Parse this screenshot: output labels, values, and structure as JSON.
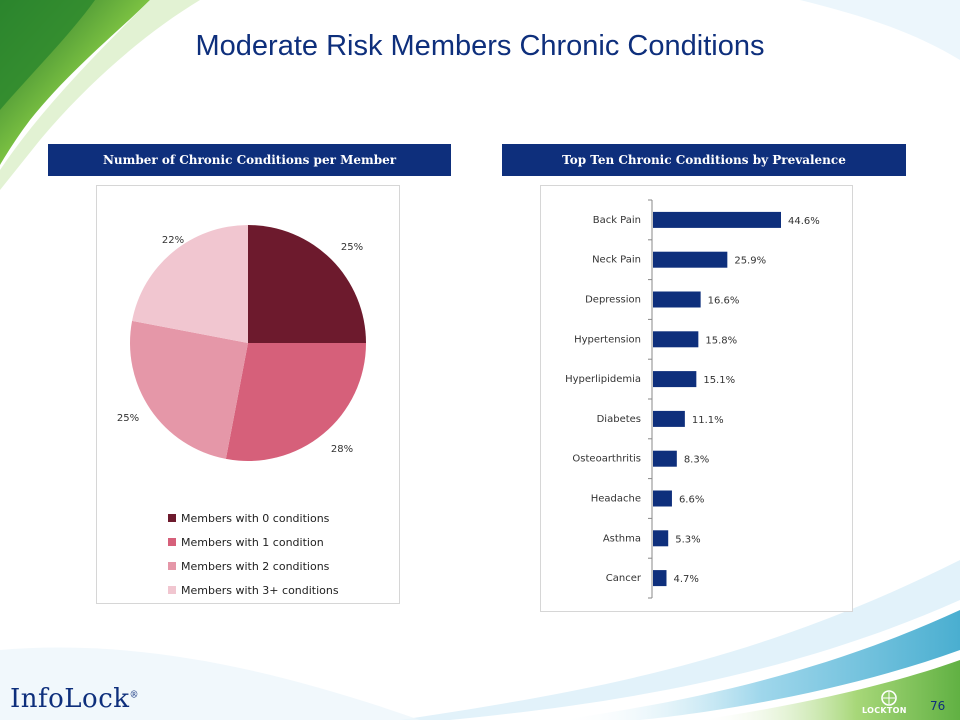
{
  "slide": {
    "title": "Moderate Risk Members Chronic Conditions",
    "page_number": "76",
    "logo_left": "InfoLock",
    "logo_left_mark": "®",
    "logo_right": "LOCKTON"
  },
  "colors": {
    "header_blue": "#0e2f7c",
    "bar_blue": "#0e2f7c",
    "pie": [
      "#6d1a2d",
      "#d6607a",
      "#e597a8",
      "#f1c6d0"
    ]
  },
  "chart_data": [
    {
      "type": "pie",
      "title": "Number of Chronic Conditions per Member",
      "categories": [
        "Members with 0 conditions",
        "Members with 1 condition",
        "Members with 2 conditions",
        "Members with 3+ conditions"
      ],
      "values": [
        25,
        28,
        25,
        22
      ],
      "data_labels": [
        "25%",
        "28%",
        "25%",
        "22%"
      ],
      "legend_position": "bottom"
    },
    {
      "type": "bar",
      "orientation": "horizontal",
      "title": "Top Ten Chronic Conditions by Prevalence",
      "categories": [
        "Back Pain",
        "Neck Pain",
        "Depression",
        "Hypertension",
        "Hyperlipidemia",
        "Diabetes",
        "Osteoarthritis",
        "Headache",
        "Asthma",
        "Cancer"
      ],
      "values": [
        44.6,
        25.9,
        16.6,
        15.8,
        15.1,
        11.1,
        8.3,
        6.6,
        5.3,
        4.7
      ],
      "data_labels": [
        "44.6%",
        "25.9%",
        "16.6%",
        "15.8%",
        "15.1%",
        "11.1%",
        "8.3%",
        "6.6%",
        "5.3%",
        "4.7%"
      ],
      "xlim": [
        0,
        50
      ]
    }
  ]
}
